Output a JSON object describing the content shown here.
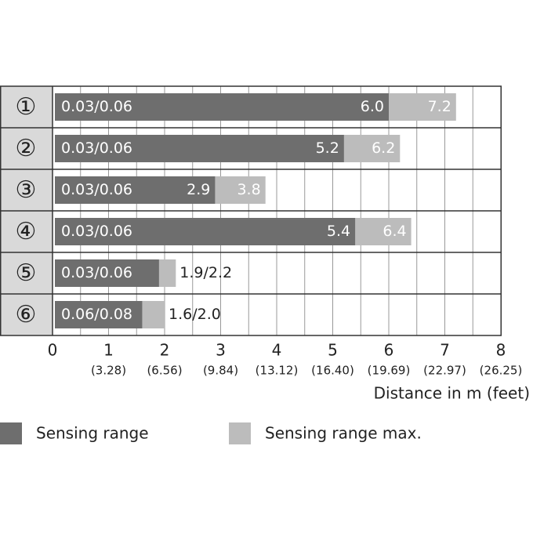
{
  "chart_data": {
    "type": "range_bar",
    "categories": [
      "①",
      "②",
      "③",
      "④",
      "⑤",
      "⑥"
    ],
    "start_labels": [
      "0.03/0.06",
      "0.03/0.06",
      "0.03/0.06",
      "0.03/0.06",
      "0.03/0.06",
      "0.06/0.08"
    ],
    "series": [
      {
        "name": "Sensing range max.",
        "color": "#bcbcbc",
        "values": [
          7.2,
          6.2,
          3.8,
          6.4,
          2.2,
          2.0
        ],
        "value_labels": [
          "7.2",
          "6.2",
          "3.8",
          "6.4",
          null,
          null
        ]
      },
      {
        "name": "Sensing range",
        "color": "#6e6e6e",
        "values": [
          6.0,
          5.2,
          2.9,
          5.4,
          1.9,
          1.6
        ],
        "value_labels": [
          "6.0",
          "5.2",
          "2.9",
          "5.4",
          null,
          null
        ]
      }
    ],
    "combined_labels": [
      null,
      null,
      null,
      null,
      "1.9/2.2",
      "1.6/2.0"
    ],
    "xlim": [
      0,
      8
    ],
    "xticks": [
      0,
      1,
      2,
      3,
      4,
      5,
      6,
      7,
      8
    ],
    "xtick_sublabels": [
      null,
      "(3.28)",
      "(6.56)",
      "(9.84)",
      "(13.12)",
      "(16.40)",
      "(19.69)",
      "(22.97)",
      "(26.25)"
    ],
    "xgrid": [
      0.5,
      1,
      1.5,
      2,
      2.5,
      3,
      3.5,
      4,
      4.5,
      5,
      5.5,
      6,
      6.5,
      7,
      7.5,
      8
    ],
    "xlabel": "Distance in m (feet)"
  }
}
